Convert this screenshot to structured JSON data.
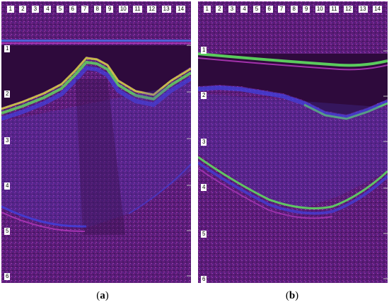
{
  "panels": [
    {
      "id": "a",
      "caption_open": "(",
      "caption_letter": "a",
      "caption_close": ")",
      "top_scale": [
        "1",
        "2",
        "3",
        "4",
        "5",
        "6",
        "7",
        "8",
        "9",
        "10",
        "11",
        "12",
        "13",
        "14"
      ],
      "depth_scale": [
        "1",
        "2",
        "3",
        "4",
        "5",
        "6"
      ]
    },
    {
      "id": "b",
      "caption_open": "(",
      "caption_letter": "b",
      "caption_close": ")",
      "top_scale": [
        "1",
        "2",
        "3",
        "4",
        "5",
        "6",
        "7",
        "8",
        "9",
        "10",
        "11",
        "12",
        "13",
        "14"
      ],
      "depth_scale": [
        "1",
        "2",
        "3",
        "4",
        "5",
        "6"
      ]
    }
  ],
  "colors": {
    "background": "#5a1c76",
    "dark_region": "#2e0a3c",
    "magenta": "#c03cc8",
    "blue": "#4040e0",
    "green": "#60e060",
    "yellow": "#e0e040"
  }
}
